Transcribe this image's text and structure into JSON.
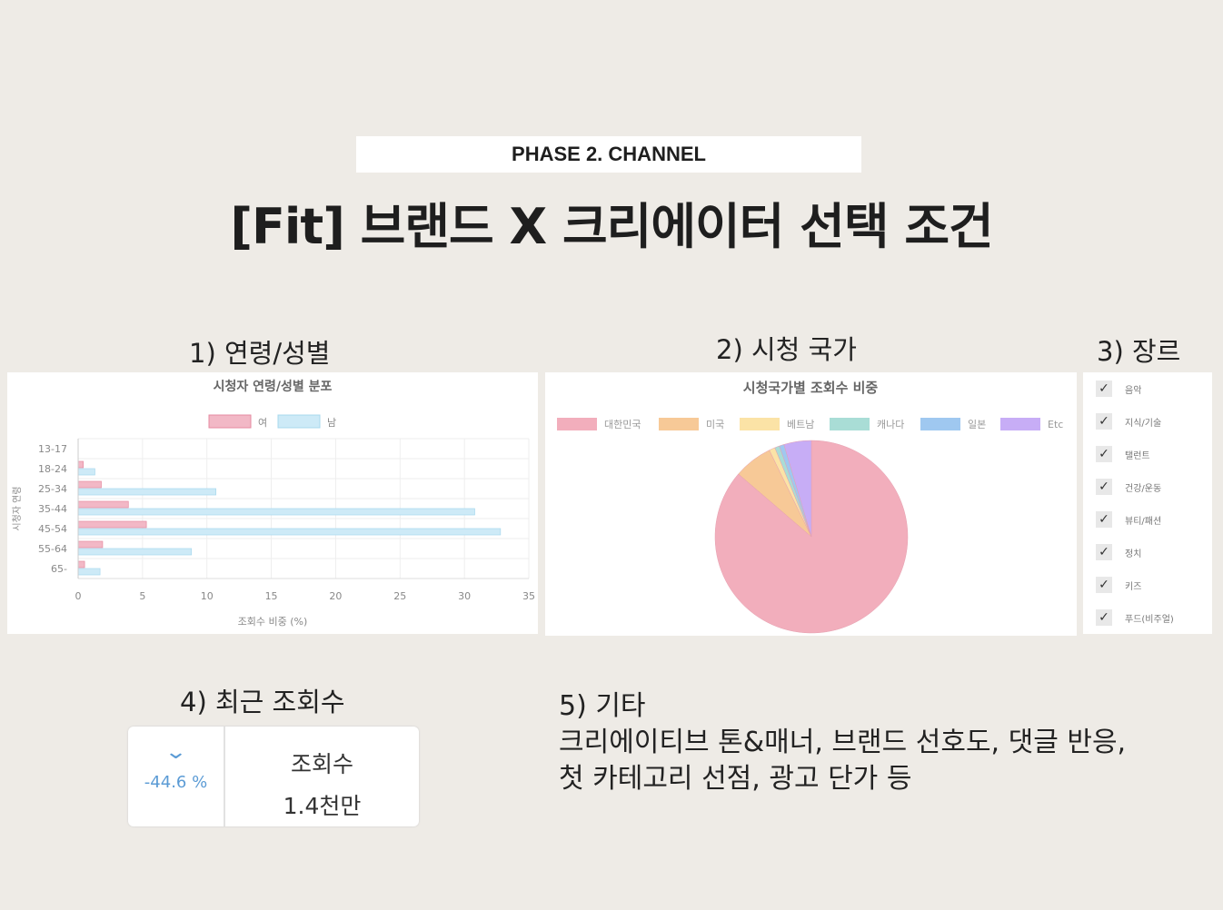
{
  "header": {
    "phase": "PHASE 2. CHANNEL",
    "title": "[Fit] 브랜드 X 크리에이터 선택 조건"
  },
  "sections": {
    "s1": "1) 연령/성별",
    "s2": "2) 시청 국가",
    "s3": "3) 장르",
    "s4": "4) 최근 조회수",
    "s5": "5) 기타"
  },
  "genres": [
    "음악",
    "지식/기술",
    "탤런트",
    "건강/운동",
    "뷰티/패션",
    "정치",
    "키즈",
    "푸드(비주얼)"
  ],
  "views": {
    "change": "-44.6 %",
    "label": "조회수",
    "value": "1.4천만",
    "icon": "chevron-down-icon",
    "change_color": "#5b9bd5"
  },
  "etc": {
    "line1": "크리에이티브 톤&매너, 브랜드 선호도, 댓글 반응,",
    "line2": "첫 카테고리 선점, 광고 단가 등"
  },
  "chart_data": [
    {
      "type": "bar",
      "orientation": "horizontal",
      "title": "시청자 연령/성별 분포",
      "xlabel": "조회수 비중 (%)",
      "ylabel": "시청자 연령",
      "xlim": [
        0,
        35
      ],
      "xticks": [
        0,
        5,
        10,
        15,
        20,
        25,
        30,
        35
      ],
      "grid": true,
      "legend": "top",
      "categories": [
        "13-17",
        "18-24",
        "25-34",
        "35-44",
        "45-54",
        "55-64",
        "65-"
      ],
      "series": [
        {
          "name": "여",
          "color": "#f2b8c6",
          "values": [
            0,
            0.4,
            1.8,
            3.9,
            5.3,
            1.9,
            0.5
          ]
        },
        {
          "name": "남",
          "color": "#cdeaf7",
          "values": [
            0,
            1.3,
            10.7,
            30.8,
            32.8,
            8.8,
            1.7
          ]
        }
      ]
    },
    {
      "type": "pie",
      "title": "시청국가별 조회수 비중",
      "legend": "top",
      "categories": [
        "대한민국",
        "미국",
        "베트남",
        "캐나다",
        "일본",
        "Etc"
      ],
      "values": [
        86.3,
        6.5,
        1.0,
        0.8,
        0.8,
        4.6
      ],
      "colors": [
        "#f2aebc",
        "#f7c997",
        "#fbe3a6",
        "#a9ddd6",
        "#9fc8f0",
        "#c7adf6"
      ]
    }
  ]
}
